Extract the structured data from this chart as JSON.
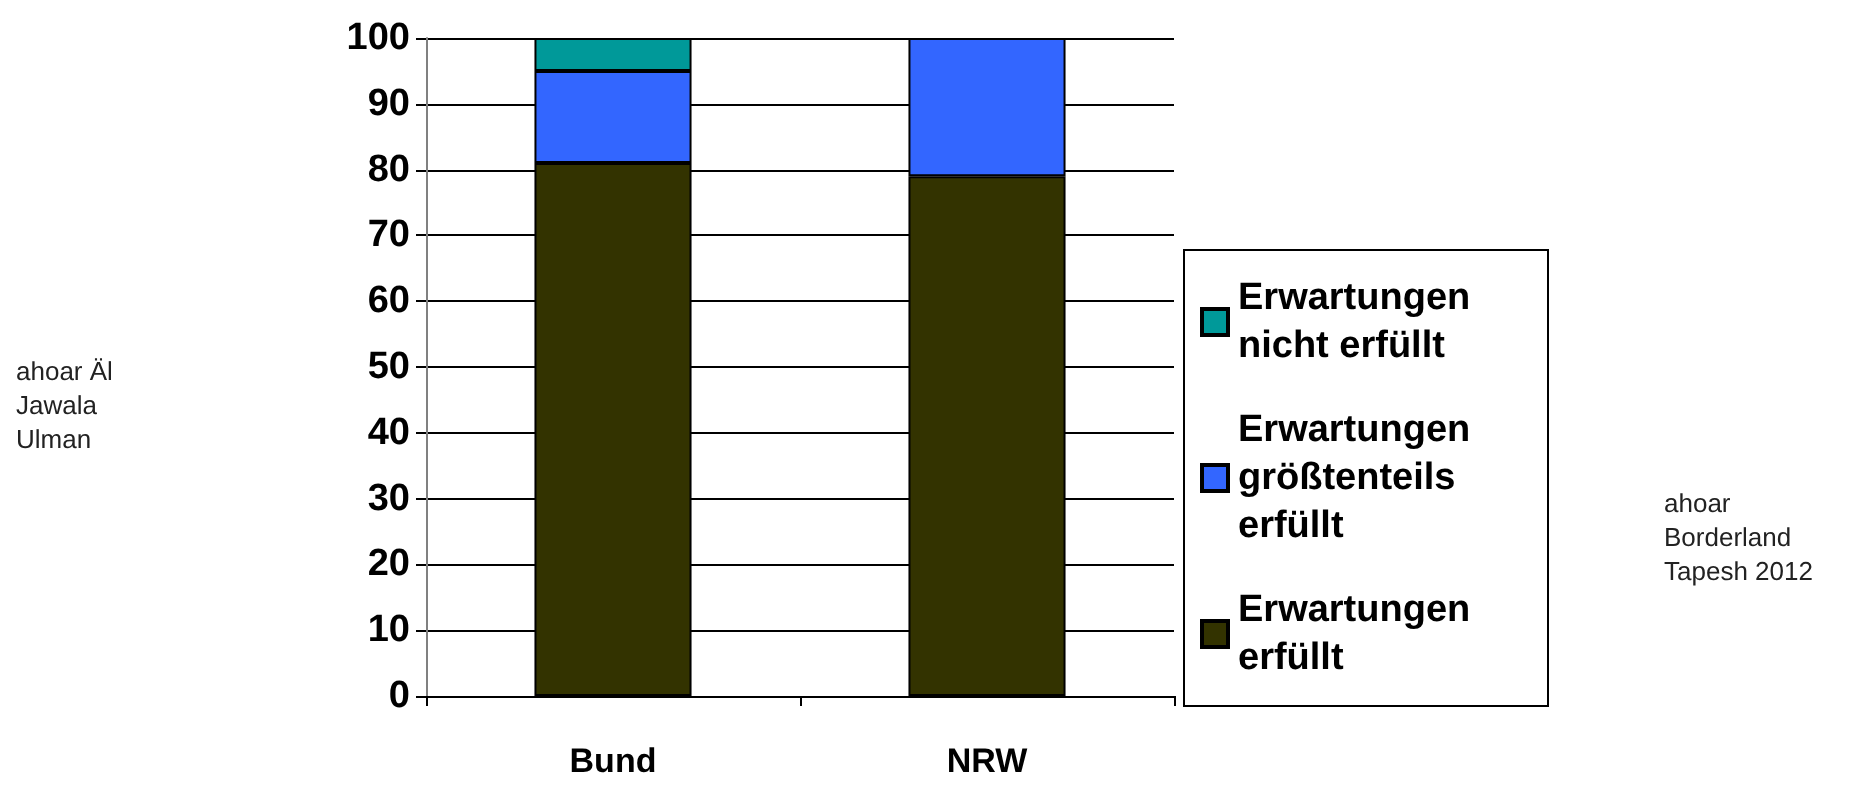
{
  "chart_data": {
    "type": "bar",
    "stacked": true,
    "categories": [
      "Bund",
      "NRW"
    ],
    "series": [
      {
        "name": "Erwartungen erfüllt",
        "color": "#333300",
        "values": [
          81,
          79
        ]
      },
      {
        "name": "Erwartungen größtenteils erfüllt",
        "color": "#3366ff",
        "values": [
          14,
          21
        ]
      },
      {
        "name": "Erwartungen nicht erfüllt",
        "color": "#009999",
        "values": [
          5,
          0
        ]
      }
    ],
    "ylim": [
      0,
      100
    ],
    "yticks": [
      0,
      10,
      20,
      30,
      40,
      50,
      60,
      70,
      80,
      90,
      100
    ],
    "grid": "y",
    "legend": "right",
    "annotations": [
      "ahoar Äl Jawala Ulman",
      "ahoar Borderland Tapesh 2012"
    ]
  }
}
